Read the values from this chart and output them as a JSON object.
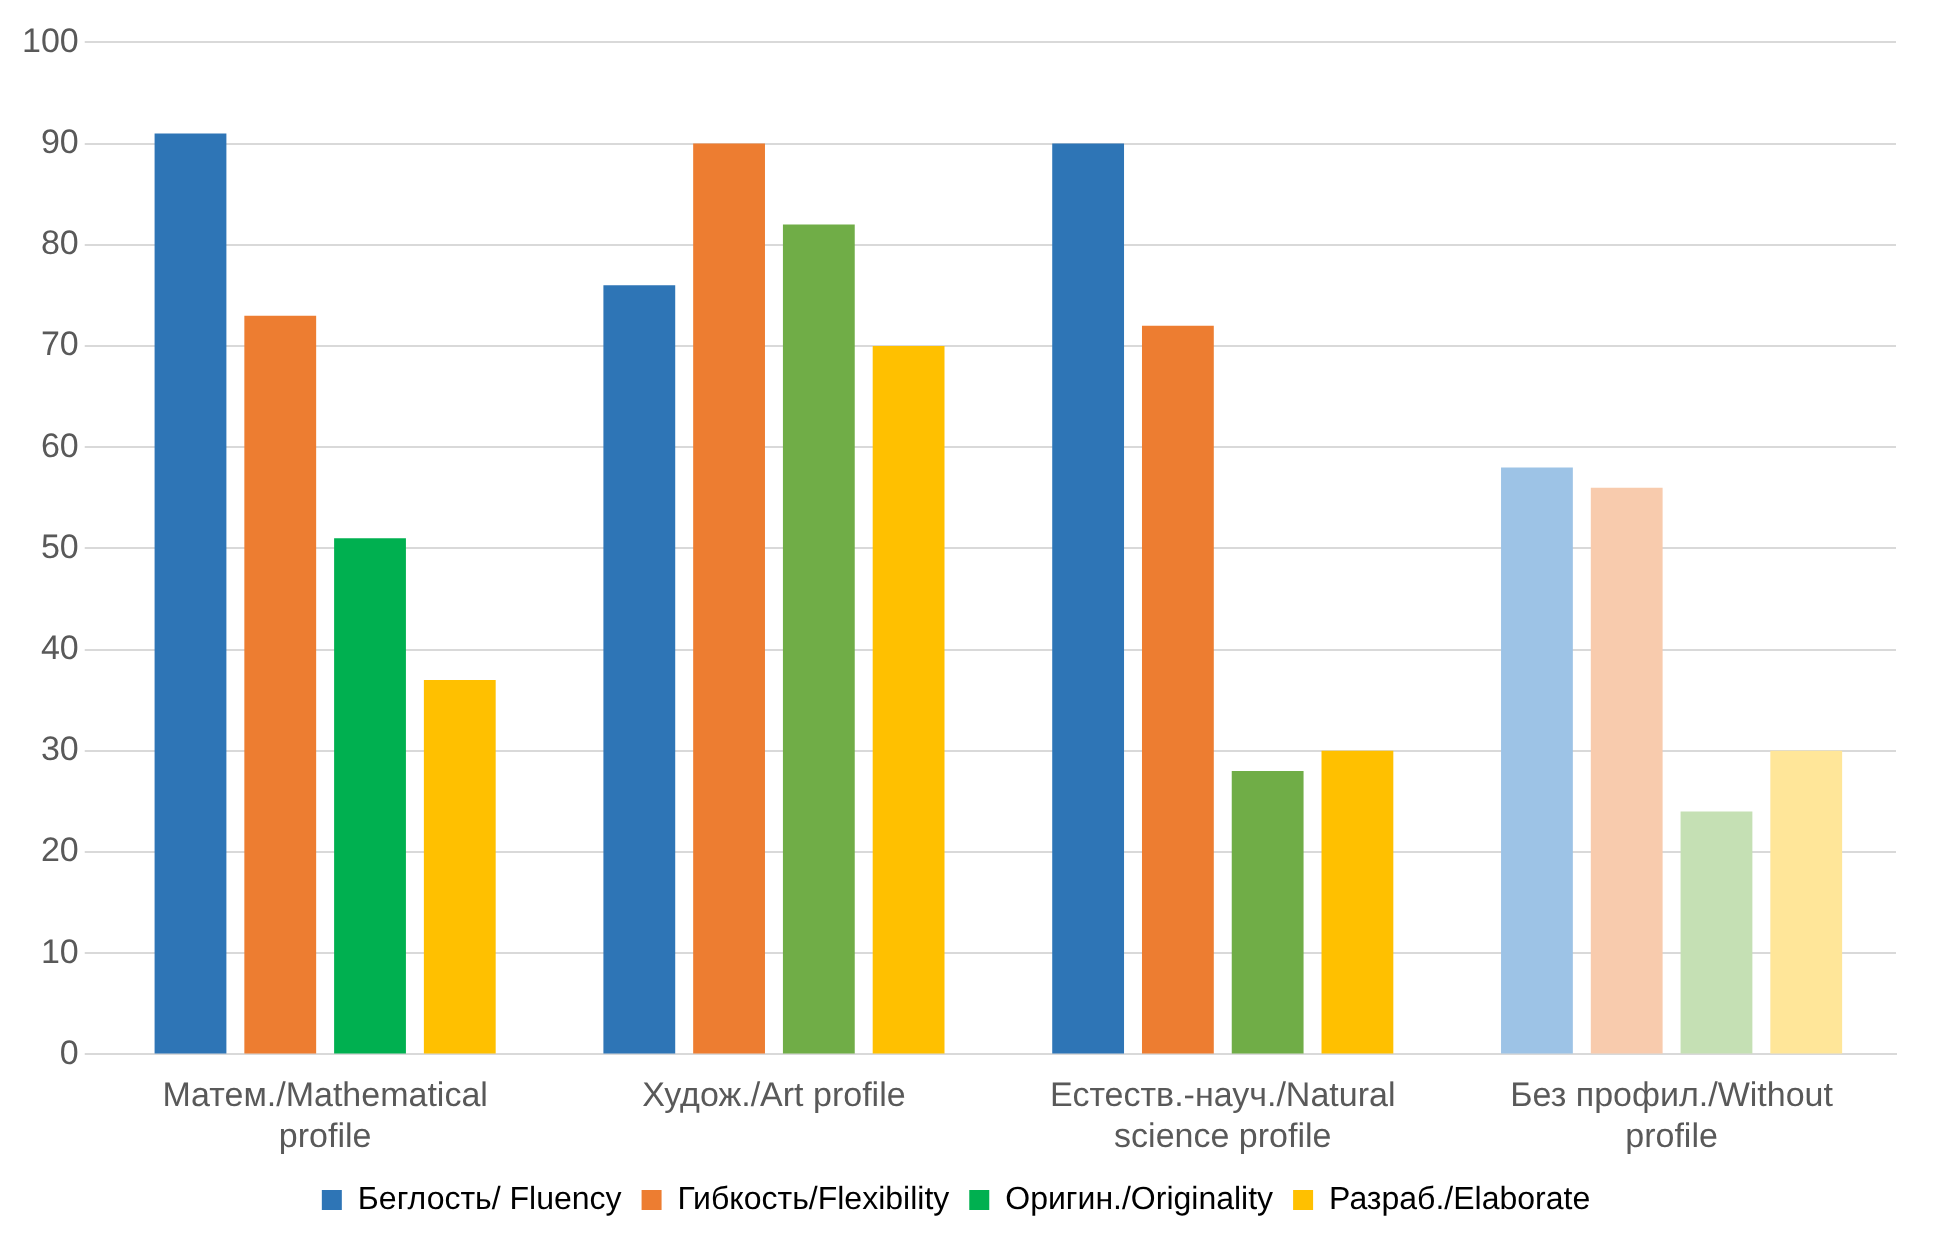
{
  "chart_data": {
    "type": "bar",
    "categories": [
      "Матем./Mathematical profile",
      "Худож./Art profile",
      "Естеств.-науч./Natural science profile",
      "Без профил./Without profile"
    ],
    "series": [
      {
        "name": "Беглость/ Fluency",
        "color": "#2e75b6",
        "colors": [
          "#2e75b6",
          "#2e75b6",
          "#2e75b6",
          "#9dc3e6"
        ],
        "values": [
          91,
          76,
          90,
          58
        ]
      },
      {
        "name": "Гибкость/Flexibility",
        "color": "#ed7d31",
        "colors": [
          "#ed7d31",
          "#ed7d31",
          "#ed7d31",
          "#f8cbad"
        ],
        "values": [
          73,
          90,
          72,
          56
        ]
      },
      {
        "name": "Оригин./Originality",
        "color": "#00b050",
        "colors": [
          "#00b050",
          "#70ad47",
          "#70ad47",
          "#c5e0b4"
        ],
        "values": [
          51,
          82,
          28,
          24
        ]
      },
      {
        "name": "Разраб./Elaborate",
        "color": "#ffc000",
        "colors": [
          "#ffc000",
          "#ffc000",
          "#ffc000",
          "#ffe699"
        ],
        "values": [
          37,
          70,
          30,
          30
        ]
      }
    ],
    "ylim": [
      0,
      100
    ],
    "yticks": [
      0,
      10,
      20,
      30,
      40,
      50,
      60,
      70,
      80,
      90,
      100
    ],
    "grid": "y",
    "legend": "bottom"
  }
}
